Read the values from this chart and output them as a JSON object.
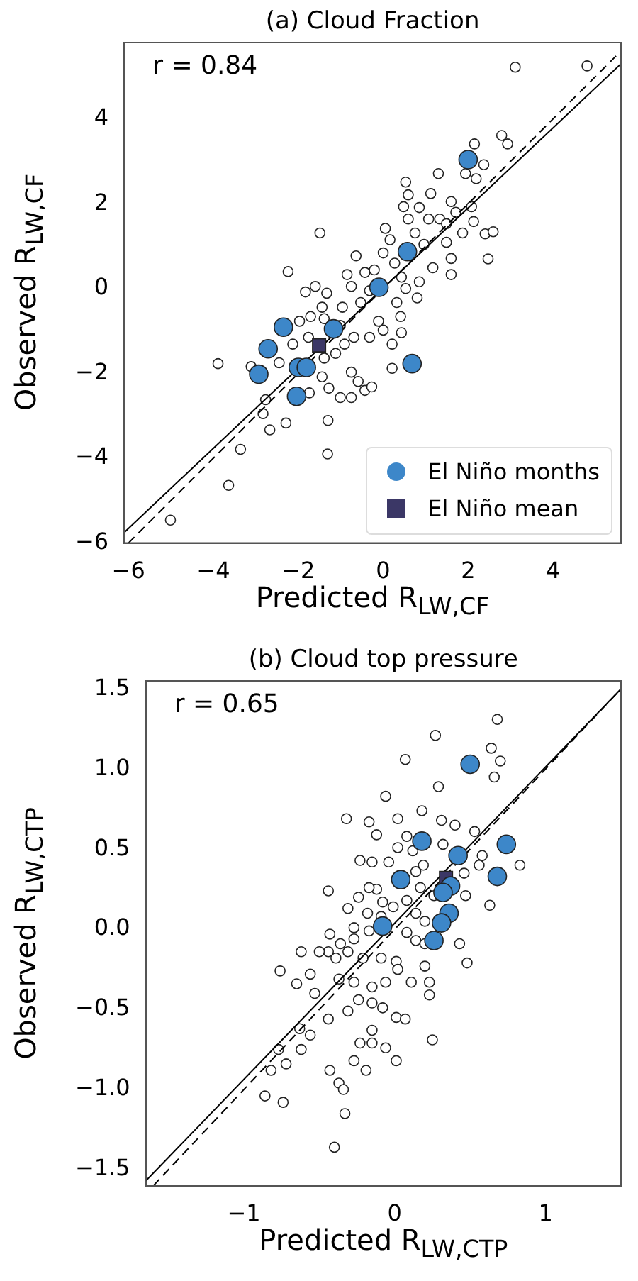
{
  "chart_data": [
    {
      "type": "scatter",
      "title": "(a) Cloud Fraction",
      "xlabel": "Predicted R$_{LW,CF}$",
      "ylabel": "Observed R$_{LW,CF}$",
      "annotations": [
        "r = 0.84"
      ],
      "xlim": [
        -6.1,
        5.6
      ],
      "ylim": [
        -6,
        5.8
      ],
      "xticks": [
        -6,
        -4,
        -2,
        0,
        2,
        4
      ],
      "yticks": [
        -6,
        -4,
        -2,
        0,
        2,
        4
      ],
      "grid": false,
      "legend": "bottom right",
      "series": [
        {
          "color": "#ffffff",
          "marker": "circle",
          "x": [
            3.11,
            4.8,
            2.79,
            2.93,
            2.15,
            2.37,
            2.19,
            1.94,
            1.3,
            0.53,
            0.59,
            1.12,
            0.85,
            0.48,
            1.6,
            1.71,
            2.08,
            0.59,
            1.07,
            1.33,
            1.49,
            1.87,
            2.13,
            2.4,
            2.59,
            2.47,
            -1.49,
            -2.24,
            0.05,
            0.16,
            0.75,
            0.96,
            1.49,
            1.6,
            1.17,
            1.6,
            0.85,
            0.43,
            -0.64,
            0,
            0.27,
            -0.43,
            -0.85,
            -0.21,
            -0.75,
            -0.32,
            0.53,
            0.8,
            0.32,
            -0.53,
            -0.96,
            -1.33,
            -1.83,
            -1.6,
            -1.44,
            -1.71,
            -1.97,
            -1.39,
            -1.01,
            -0.91,
            -0.69,
            -0.32,
            0,
            0.43,
            0.21,
            0.41,
            -0.11,
            -0.75,
            -0.59,
            -0.43,
            -0.27,
            -0.75,
            -1.01,
            -1.28,
            -1.44,
            -1.74,
            -1.39,
            -1.12,
            -2.13,
            -1.76,
            0.21,
            -3.89,
            -2.77,
            -2.83,
            -2.67,
            -2.29,
            -1.3,
            -1.31,
            -3.36,
            -3.64,
            -5.01,
            -3.11,
            -2.45
          ],
          "values": [
            5.22,
            5.25,
            3.61,
            3.41,
            3.41,
            2.92,
            2.59,
            2.71,
            2.71,
            2.51,
            2.21,
            2.24,
            1.91,
            1.93,
            2.05,
            1.8,
            1.93,
            1.64,
            1.64,
            1.64,
            1.53,
            1.31,
            1.58,
            1.29,
            1.34,
            0.7,
            1.31,
            0.4,
            1.42,
            1.15,
            1.31,
            1.04,
            1.09,
            0.71,
            0.49,
            0.33,
            0.16,
            0.27,
            0.77,
            0.84,
            0.6,
            0.38,
            0.33,
            0.44,
            0.05,
            -0.05,
            0,
            -0.22,
            -0.33,
            -0.33,
            -0.44,
            -0.11,
            -0.08,
            0.05,
            -0.44,
            -0.66,
            -0.77,
            -0.71,
            -0.87,
            -1.31,
            -1.15,
            -1.15,
            -0.98,
            -1.04,
            -1.31,
            -0.66,
            -0.77,
            -1.97,
            -2.19,
            -2.4,
            -2.32,
            -2.57,
            -2.57,
            -2.35,
            -2.08,
            -2.46,
            -1.64,
            -1.53,
            -1.31,
            -1.15,
            -1.88,
            -1.77,
            -2.62,
            -2.95,
            -3.33,
            -3.17,
            -3.11,
            -3.9,
            -3.79,
            -4.64,
            -5.46,
            -1.84,
            -1.75
          ]
        },
        {
          "type": "line",
          "color": "#000000",
          "marker": "none",
          "line_style": "solid",
          "x": [
            -6.1,
            5.6
          ],
          "values": [
            -5.75,
            5.3
          ]
        },
        {
          "type": "line",
          "color": "#000000",
          "marker": "none",
          "line_style": "dashed",
          "x": [
            -6,
            5.6
          ],
          "values": [
            -6,
            5.6
          ]
        },
        {
          "name": "El Niño months",
          "color": "#3d87c9",
          "marker": "circle",
          "x": [
            2.0,
            0.57,
            -0.1,
            -1.17,
            -2.35,
            -2.71,
            -2.93,
            -2.0,
            -1.81,
            -2.04,
            0.68
          ],
          "values": [
            3.04,
            0.87,
            0.03,
            -0.95,
            -0.91,
            -1.42,
            -2.02,
            -1.86,
            -1.86,
            -2.54,
            -1.77
          ]
        },
        {
          "name": "El Niño mean",
          "color": "#3b3766",
          "marker": "square",
          "x": [
            -1.51
          ],
          "values": [
            -1.34
          ]
        }
      ]
    },
    {
      "type": "scatter",
      "title": "(b) Cloud top pressure",
      "xlabel": "Predicted R$_{LW,CTP}$",
      "ylabel": "Observed R$_{LW,CTP}$",
      "annotations": [
        "r = 0.65"
      ],
      "xlim": [
        -1.65,
        1.5
      ],
      "ylim": [
        -1.6,
        1.55
      ],
      "xticks": [
        -1,
        0,
        1
      ],
      "yticks": [
        {
          "value": -1.5,
          "label": "−1.5"
        },
        {
          "value": -1,
          "label": "−1.0"
        },
        {
          "value": -0.5,
          "label": "−0.5"
        },
        {
          "value": 0,
          "label": "0.0"
        },
        {
          "value": 0.5,
          "label": "0.5"
        },
        {
          "value": 1,
          "label": "1.0"
        },
        {
          "value": 1.5,
          "label": "1.5"
        }
      ],
      "grid": false,
      "legend": false,
      "series": [
        {
          "color": "#ffffff",
          "marker": "circle",
          "x": [
            0.68,
            0.27,
            0.64,
            0.7,
            0.66,
            0.07,
            0.29,
            -0.06,
            -0.32,
            -0.17,
            0.18,
            0.02,
            0.31,
            0.4,
            0.53,
            -0.12,
            0.08,
            0.02,
            0.12,
            0.32,
            0.58,
            0.83,
            -0.23,
            -0.15,
            -0.04,
            0.19,
            0.14,
            0.46,
            0.56,
            -0.12,
            -0.17,
            -0.44,
            -0.24,
            -0.08,
            -0.01,
            0.08,
            0.17,
            0.26,
            0.47,
            0.63,
            -0.31,
            -0.18,
            -0.09,
            0.14,
            0.2,
            -0.27,
            -0.17,
            0.08,
            -0.43,
            -0.27,
            -0.36,
            -0.44,
            -0.5,
            -0.62,
            -0.31,
            -0.39,
            -0.21,
            -0.09,
            0.01,
            0.14,
            0.2,
            0.43,
            0.48,
            0.2,
            0.02,
            -0.76,
            -0.65,
            -0.56,
            -0.53,
            -0.37,
            -0.27,
            -0.15,
            -0.06,
            0.11,
            0.23,
            -0.24,
            -0.15,
            -0.08,
            0.01,
            0.07,
            -0.31,
            -0.44,
            0.23,
            0.25,
            -0.15,
            -0.23,
            -0.15,
            -0.06,
            0.01,
            -0.27,
            -0.19,
            -0.63,
            -0.56,
            -0.62,
            -0.77,
            -0.72,
            -0.82,
            -0.86,
            -0.74,
            -0.43,
            -0.37,
            -0.34,
            -0.33,
            -0.4
          ],
          "values": [
            1.31,
            1.21,
            1.13,
            1.05,
            0.95,
            1.06,
            0.89,
            0.83,
            0.69,
            0.67,
            0.74,
            0.69,
            0.68,
            0.65,
            0.61,
            0.59,
            0.58,
            0.51,
            0.49,
            0.53,
            0.46,
            0.4,
            0.43,
            0.42,
            0.42,
            0.4,
            0.36,
            0.35,
            0.4,
            0.25,
            0.26,
            0.24,
            0.2,
            0.17,
            0.14,
            0.18,
            0.26,
            0.21,
            0.21,
            0.15,
            0.13,
            0.1,
            0.08,
            0.1,
            0.05,
            0.01,
            -0.01,
            -0.02,
            -0.03,
            -0.06,
            -0.09,
            -0.14,
            -0.14,
            -0.14,
            -0.14,
            -0.18,
            -0.18,
            -0.18,
            -0.2,
            -0.07,
            -0.09,
            -0.09,
            -0.21,
            -0.23,
            -0.25,
            -0.26,
            -0.34,
            -0.28,
            -0.4,
            -0.31,
            -0.33,
            -0.36,
            -0.33,
            -0.33,
            -0.33,
            -0.44,
            -0.46,
            -0.49,
            -0.55,
            -0.56,
            -0.51,
            -0.56,
            -0.41,
            -0.69,
            -0.63,
            -0.71,
            -0.71,
            -0.74,
            -0.82,
            -0.82,
            -0.88,
            -0.62,
            -0.66,
            -0.75,
            -0.75,
            -0.84,
            -0.88,
            -1.04,
            -1.08,
            -0.88,
            -0.96,
            -1.0,
            -1.15,
            -1.36
          ]
        },
        {
          "type": "line",
          "color": "#000000",
          "marker": "none",
          "line_style": "solid",
          "x": [
            -1.65,
            1.5
          ],
          "values": [
            -1.57,
            1.5
          ]
        },
        {
          "type": "line",
          "color": "#000000",
          "marker": "none",
          "line_style": "dashed",
          "x": [
            -1.6,
            1.5
          ],
          "values": [
            -1.6,
            1.5
          ]
        },
        {
          "color": "#3d87c9",
          "marker": "circle",
          "x": [
            0.5,
            0.74,
            0.18,
            0.42,
            0.68,
            0.04,
            0.37,
            0.32,
            0.36,
            0.31,
            0.26,
            -0.08
          ],
          "values": [
            1.03,
            0.53,
            0.55,
            0.46,
            0.33,
            0.31,
            0.27,
            0.23,
            0.1,
            0.04,
            -0.07,
            0.02
          ]
        },
        {
          "color": "#3b3766",
          "marker": "square",
          "x": [
            0.34
          ],
          "values": [
            0.32
          ]
        }
      ]
    }
  ]
}
